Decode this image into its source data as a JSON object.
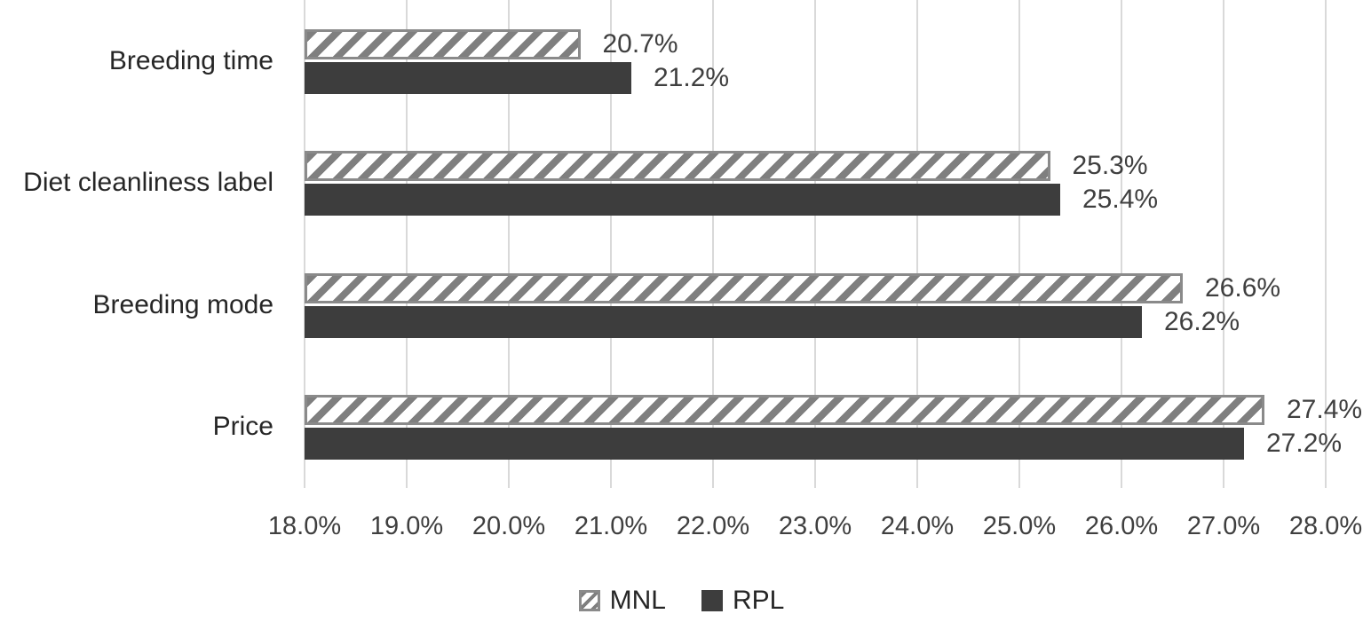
{
  "chart_data": {
    "type": "bar",
    "orientation": "horizontal",
    "title": "",
    "categories": [
      "Breeding time",
      "Diet cleanliness label",
      "Breeding mode",
      "Price"
    ],
    "series": [
      {
        "name": "MNL",
        "style": "hatched",
        "values": [
          20.7,
          25.3,
          26.6,
          27.4
        ],
        "labels": [
          "20.7%",
          "25.3%",
          "26.6%",
          "27.4%"
        ]
      },
      {
        "name": "RPL",
        "style": "solid",
        "values": [
          21.2,
          25.4,
          26.2,
          27.2
        ],
        "labels": [
          "21.2%",
          "25.4%",
          "26.2%",
          "27.2%"
        ]
      }
    ],
    "x_axis": {
      "min": 18,
      "max": 28,
      "tick_step": 1,
      "tick_labels": [
        "18.0%",
        "19.0%",
        "20.0%",
        "21.0%",
        "22.0%",
        "23.0%",
        "24.0%",
        "25.0%",
        "26.0%",
        "27.0%",
        "28.0%"
      ]
    },
    "grid": true,
    "legend": {
      "position": "bottom",
      "entries": [
        "MNL",
        "RPL"
      ]
    },
    "colors": {
      "rpl_fill": "#3d3d3d",
      "hatch_stroke": "#7f7f7f",
      "hatch_background": "#ffffff",
      "hatch_border": "#8a8a8a",
      "gridline": "#d9d9d9",
      "value_text": "#3f3f3f",
      "category_text": "#262626"
    }
  }
}
